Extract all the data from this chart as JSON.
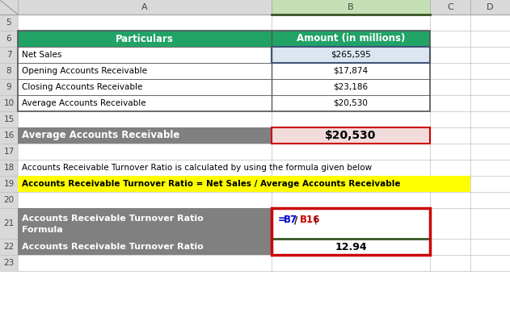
{
  "col_headers": [
    "A",
    "B",
    "C",
    "D"
  ],
  "header_row": [
    "Particulars",
    "Amount (in millions)"
  ],
  "data_rows": [
    [
      "Net Sales",
      "$265,595"
    ],
    [
      "Opening Accounts Receivable",
      "$17,874"
    ],
    [
      "Closing Accounts Receivable",
      "$23,186"
    ],
    [
      "Average Accounts Receivable",
      "$20,530"
    ]
  ],
  "row16_left": "Average Accounts Receivable",
  "row16_right": "$20,530",
  "row18_text": "Accounts Receivable Turnover Ratio is calculated by using the formula given below",
  "row19_text": "Accounts Receivable Turnover Ratio = Net Sales / Average Accounts Receivable",
  "row21_left": "Accounts Receivable Turnover Ratio\nFormula",
  "row22_left": "Accounts Receivable Turnover Ratio",
  "row22_right": "12.94",
  "green_header_bg": "#21a366",
  "gray_row_bg": "#808080",
  "yellow_row_bg": "#ffff00",
  "pink_cell_bg": "#f2dcdb",
  "white_bg": "#ffffff",
  "light_blue_cell_bg": "#dce6f1",
  "header_text_color": "#ffffff",
  "gray_text_color": "#ffffff",
  "black_text_color": "#000000",
  "red_text_color": "#cc0000",
  "blue_text_color": "#0000cc",
  "dark_blue_text_color": "#1f3864",
  "grid_color": "#bfbfbf",
  "col_header_bg": "#d9d9d9",
  "col_B_selected_bg": "#c5e0b4",
  "border_red": "#cc0000",
  "border_blue": "#2f5496",
  "border_green": "#375623"
}
